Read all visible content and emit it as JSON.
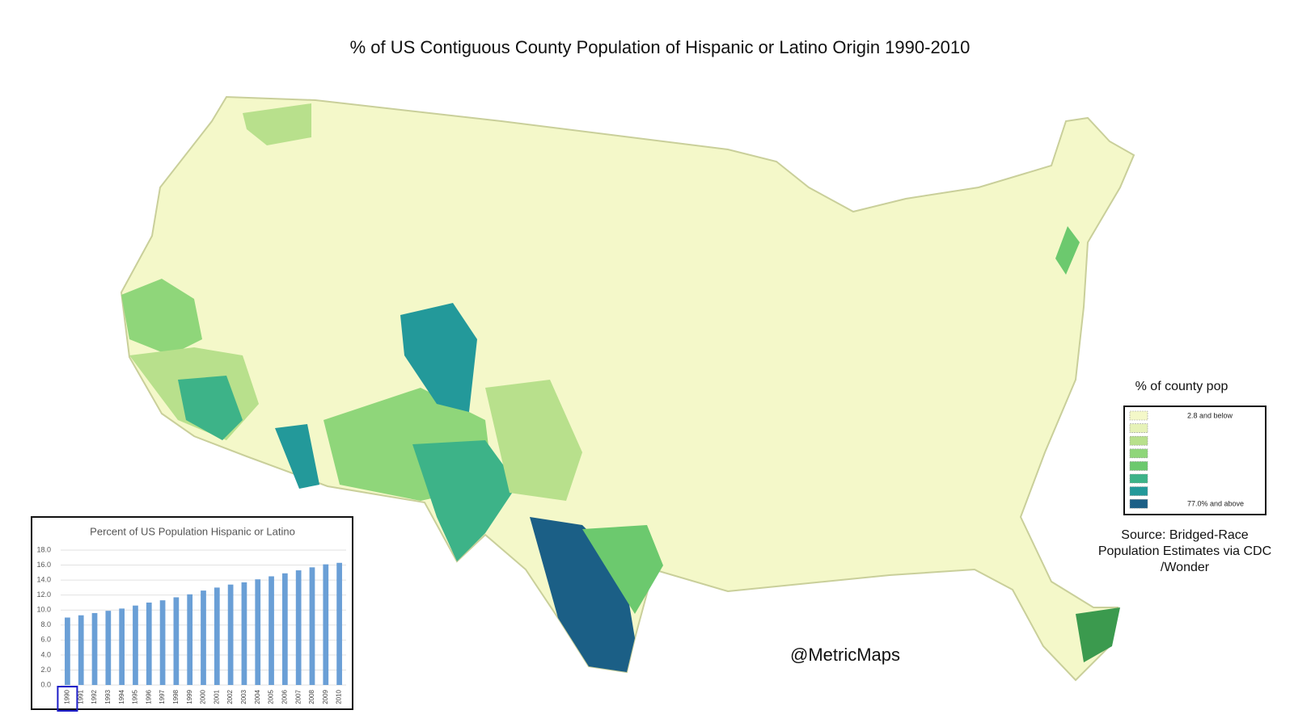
{
  "title": "% of US Contiguous County Population of Hispanic or Latino Origin 1990-2010",
  "legend": {
    "title": "% of county pop",
    "items": [
      {
        "color": "#f4f8c9",
        "label": "2.8  and below"
      },
      {
        "color": "#e6f2b8",
        "label": null
      },
      {
        "color": "#b8e08c",
        "label": null
      },
      {
        "color": "#8fd67a",
        "label": null
      },
      {
        "color": "#6cc96e",
        "label": null
      },
      {
        "color": "#3db388",
        "label": null
      },
      {
        "color": "#23999a",
        "label": null
      },
      {
        "color": "#1b5f86",
        "label": "77.0%  and above"
      }
    ]
  },
  "source": [
    "Source: Bridged-Race",
    "Population Estimates via CDC",
    "/Wonder"
  ],
  "credit": "@MetricMaps",
  "chart_data": {
    "type": "bar",
    "title": "Percent of US Population Hispanic or Latino",
    "categories": [
      "1990",
      "1991",
      "1992",
      "1993",
      "1994",
      "1995",
      "1996",
      "1997",
      "1998",
      "1999",
      "2000",
      "2001",
      "2002",
      "2003",
      "2004",
      "2005",
      "2006",
      "2007",
      "2008",
      "2009",
      "2010"
    ],
    "values": [
      9.0,
      9.3,
      9.6,
      9.9,
      10.2,
      10.6,
      11.0,
      11.3,
      11.7,
      12.1,
      12.6,
      13.0,
      13.4,
      13.7,
      14.1,
      14.5,
      14.9,
      15.3,
      15.7,
      16.1,
      16.3
    ],
    "color": "#6a9fd6",
    "highlight": "1990",
    "ylim": [
      0,
      18
    ],
    "yticks": [
      {
        "value": 0,
        "label": "0.0"
      },
      {
        "value": 2,
        "label": "2.0"
      },
      {
        "value": 4,
        "label": "4.0"
      },
      {
        "value": 6,
        "label": "6.0"
      },
      {
        "value": 8,
        "label": "8.0"
      },
      {
        "value": 10,
        "label": "10.0"
      },
      {
        "value": 12,
        "label": "12.0"
      },
      {
        "value": 14,
        "label": "14.0"
      },
      {
        "value": 16,
        "label": "16.0"
      },
      {
        "value": 18,
        "label": "18.0"
      }
    ],
    "grid": true
  }
}
